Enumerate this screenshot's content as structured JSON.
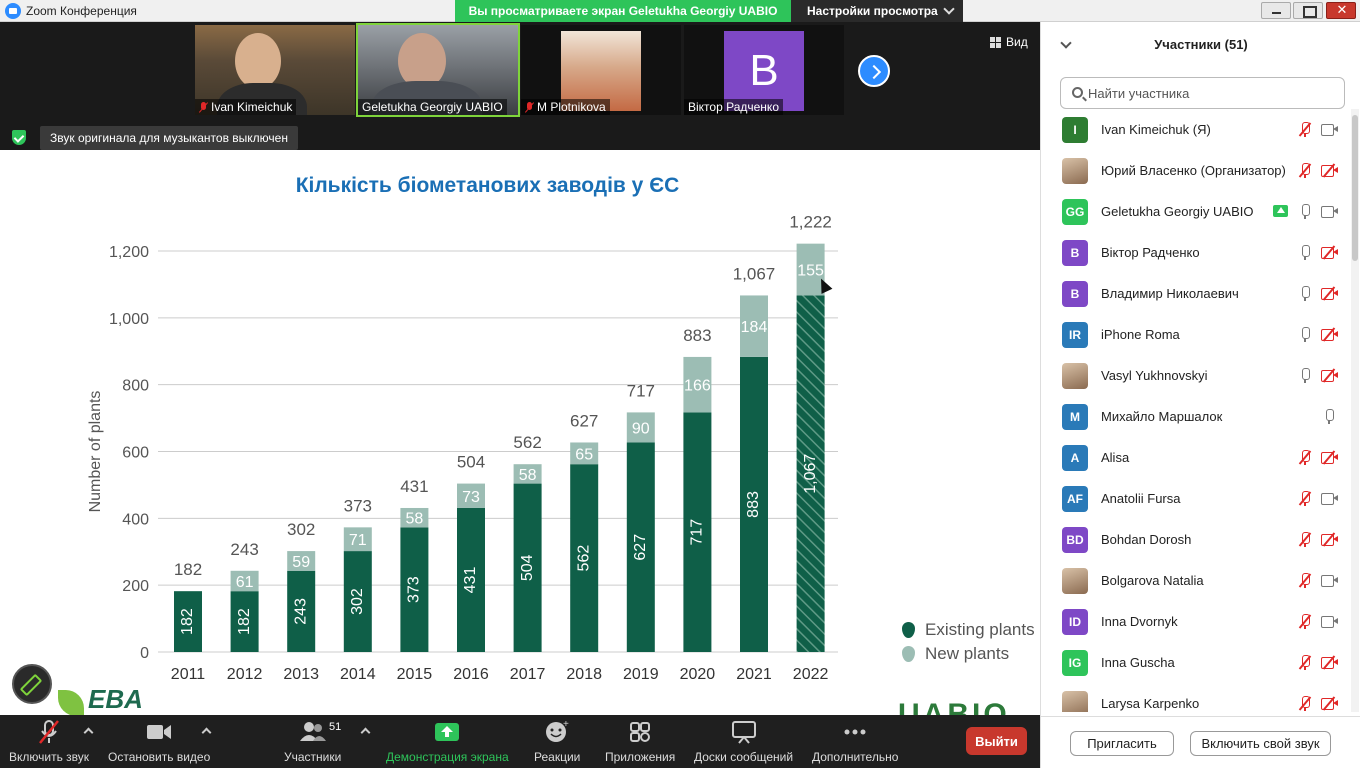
{
  "window": {
    "title": "Zoom Конференция",
    "share_banner": "Вы просматриваете экран Geletukha Georgiy UABIO",
    "view_options": "Настройки просмотра",
    "close_glyph": "✕"
  },
  "video_strip": {
    "tiles": [
      {
        "name": "Ivan Kimeichuk",
        "muted": true
      },
      {
        "name": "Geletukha Georgiy UABIO",
        "muted": false
      },
      {
        "name": "M Plotnikova",
        "muted": true
      },
      {
        "name": "Віктор Радченко",
        "muted": false,
        "initial": "B"
      }
    ],
    "view_label": "Вид",
    "notice": "Звук оригинала для музыкантов выключен"
  },
  "slide": {
    "title": "Кількість біометанових заводів у ЄС",
    "legend": [
      {
        "label": "Existing plants",
        "color": "#0f5f48"
      },
      {
        "label": "New plants",
        "color": "#9cbdb4"
      }
    ],
    "eva_logo": "EBA",
    "uabio_logo": "UABIO"
  },
  "chart_data": {
    "type": "bar",
    "stacked": true,
    "title": "Кількість біометанових заводів у ЄС",
    "ylabel": "Number of plants",
    "xlabel": "",
    "ylim": [
      0,
      1200
    ],
    "yticks": [
      "0",
      "200",
      "400",
      "600",
      "800",
      "1,000",
      "1,200"
    ],
    "categories": [
      "2011",
      "2012",
      "2013",
      "2014",
      "2015",
      "2016",
      "2017",
      "2018",
      "2019",
      "2020",
      "2021",
      "2022"
    ],
    "series": [
      {
        "name": "Existing plants",
        "values": [
          182,
          182,
          243,
          302,
          373,
          431,
          504,
          562,
          627,
          717,
          883,
          1067
        ],
        "labels": [
          "182",
          "182",
          "243",
          "302",
          "373",
          "431",
          "504",
          "562",
          "627",
          "717",
          "883",
          "1,067"
        ]
      },
      {
        "name": "New plants",
        "values": [
          0,
          61,
          59,
          71,
          58,
          73,
          58,
          65,
          90,
          166,
          184,
          155
        ],
        "labels": [
          "",
          "61",
          "59",
          "71",
          "58",
          "73",
          "58",
          "65",
          "90",
          "166",
          "184",
          "155"
        ]
      }
    ],
    "totals": [
      "182",
      "243",
      "302",
      "373",
      "431",
      "504",
      "562",
      "627",
      "717",
      "883",
      "1,067",
      "1,222"
    ],
    "colors": {
      "existing": "#0f5f48",
      "new": "#9cbdb4",
      "grid": "#cccccc",
      "text": "#555555"
    },
    "grid": true,
    "legend_position": "bottom-right",
    "last_bar_hatched": true
  },
  "toolbar": {
    "items": [
      {
        "label": "Включить звук",
        "icon": "mic-muted-icon"
      },
      {
        "label": "Остановить видео",
        "icon": "video-camera-icon"
      },
      {
        "label": "Участники",
        "icon": "participants-icon",
        "count": "51"
      },
      {
        "label": "Демонстрация экрана",
        "icon": "share-screen-icon"
      },
      {
        "label": "Реакции",
        "icon": "reactions-icon"
      },
      {
        "label": "Приложения",
        "icon": "apps-icon"
      },
      {
        "label": "Доски сообщений",
        "icon": "whiteboard-icon"
      },
      {
        "label": "Дополнительно",
        "icon": "more-icon"
      }
    ],
    "exit_label": "Выйти"
  },
  "participants_panel": {
    "title": "Участники (51)",
    "search_placeholder": "Найти участника",
    "participants": [
      {
        "name": "Ivan Kimeichuk (Я)",
        "initials": "I",
        "color": "#2e7d32",
        "mic": "off",
        "cam": "on"
      },
      {
        "name": "Юрий Власенко (Организатор)",
        "initials": "",
        "color": "photo",
        "mic": "off",
        "cam": "off"
      },
      {
        "name": "Geletukha Georgiy UABIO",
        "initials": "GG",
        "color": "#2ec45a",
        "mic": "on",
        "cam": "on",
        "sharing": true
      },
      {
        "name": "Віктор Радченко",
        "initials": "B",
        "color": "#7e48c6",
        "mic": "on",
        "cam": "off"
      },
      {
        "name": "Владимир Николаевич",
        "initials": "B",
        "color": "#7e48c6",
        "mic": "on",
        "cam": "off"
      },
      {
        "name": "iPhone Roma",
        "initials": "IR",
        "color": "#2a7ab8",
        "mic": "on",
        "cam": "off"
      },
      {
        "name": "Vasyl Yukhnovskyi",
        "initials": "",
        "color": "photo",
        "mic": "on",
        "cam": "off"
      },
      {
        "name": "Михайло Маршалок",
        "initials": "M",
        "color": "#2a7ab8",
        "mic": "on",
        "cam": "none"
      },
      {
        "name": "Alisa",
        "initials": "A",
        "color": "#2a7ab8",
        "mic": "off",
        "cam": "off"
      },
      {
        "name": "Anatolii Fursa",
        "initials": "AF",
        "color": "#2a7ab8",
        "mic": "off",
        "cam": "on"
      },
      {
        "name": "Bohdan Dorosh",
        "initials": "BD",
        "color": "#7e48c6",
        "mic": "off",
        "cam": "off"
      },
      {
        "name": "Bolgarova Natalia",
        "initials": "",
        "color": "photo",
        "mic": "off",
        "cam": "on"
      },
      {
        "name": "Inna Dvornyk",
        "initials": "ID",
        "color": "#7e48c6",
        "mic": "off",
        "cam": "on"
      },
      {
        "name": "Inna Guscha",
        "initials": "IG",
        "color": "#2ec45a",
        "mic": "off",
        "cam": "off"
      },
      {
        "name": "Larysa Karpenko",
        "initials": "",
        "color": "photo",
        "mic": "off",
        "cam": "off"
      }
    ],
    "invite_label": "Пригласить",
    "unmute_label": "Включить свой звук"
  }
}
